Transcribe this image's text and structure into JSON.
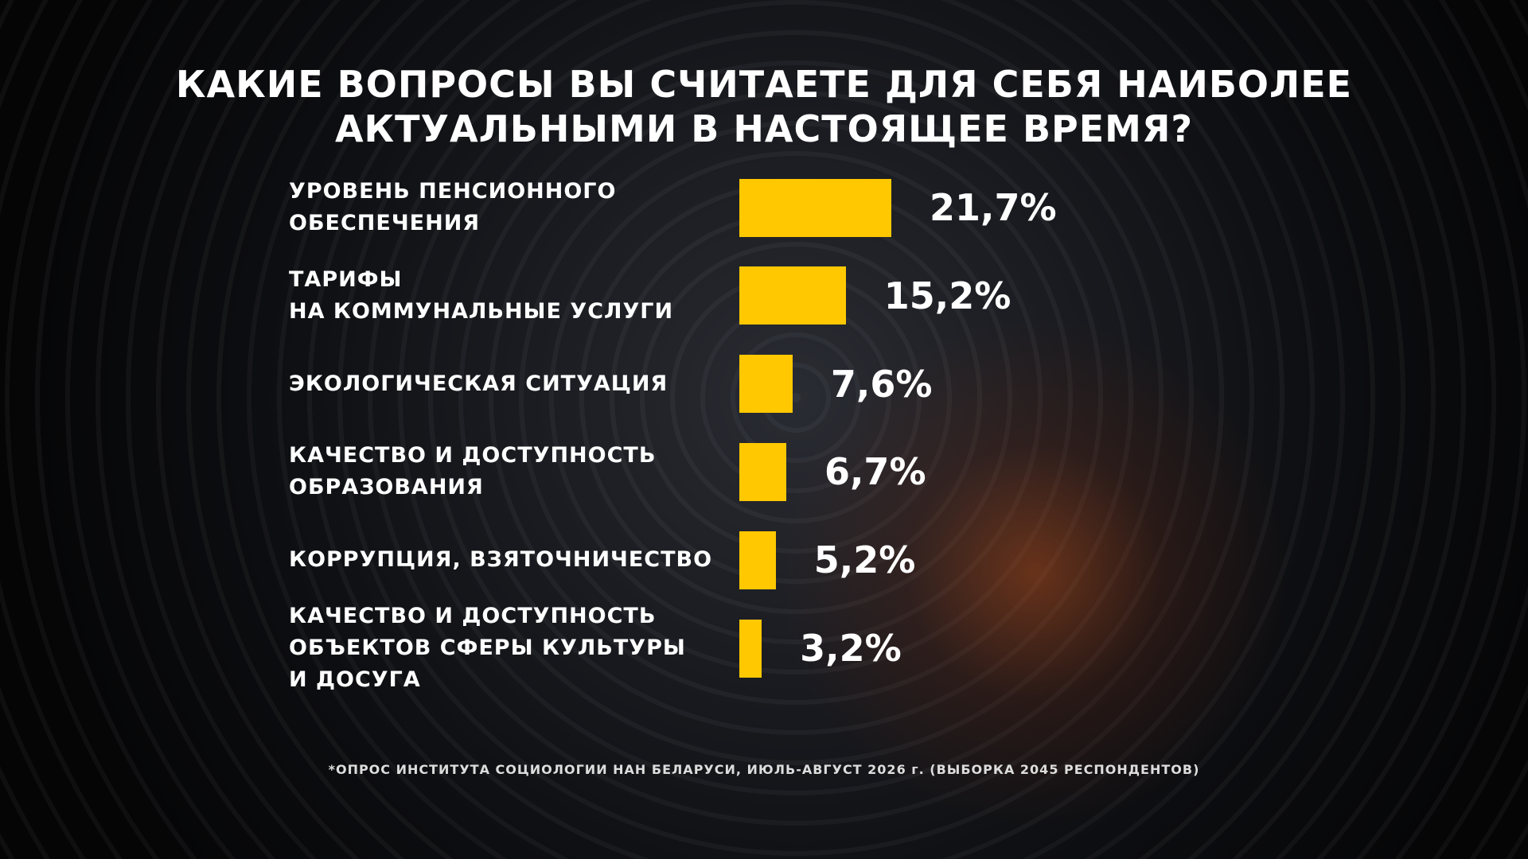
{
  "chart_data": {
    "type": "bar",
    "orientation": "horizontal",
    "title": "КАКИЕ ВОПРОСЫ ВЫ СЧИТАЕТЕ ДЛЯ СЕБЯ НАИБОЛЕЕ\nАКТУАЛЬНЫМИ В НАСТОЯЩЕЕ ВРЕМЯ?",
    "categories": [
      "УРОВЕНЬ ПЕНСИОННОГО\nОБЕСПЕЧЕНИЯ",
      "ТАРИФЫ\nНА КОММУНАЛЬНЫЕ УСЛУГИ",
      "ЭКОЛОГИЧЕСКАЯ СИТУАЦИЯ",
      "КАЧЕСТВО И ДОСТУПНОСТЬ\nОБРАЗОВАНИЯ",
      "КОРРУПЦИЯ, ВЗЯТОЧНИЧЕСТВО",
      "КАЧЕСТВО И ДОСТУПНОСТЬ\nОБЪЕКТОВ СФЕРЫ КУЛЬТУРЫ\nИ ДОСУГА"
    ],
    "values": [
      21.7,
      15.2,
      7.6,
      6.7,
      5.2,
      3.2
    ],
    "value_labels": [
      "21,7%",
      "15,2%",
      "7,6%",
      "6,7%",
      "5,2%",
      "3,2%"
    ],
    "color": "#ffc800",
    "footnote": "*ОПРОС ИНСТИТУТА СОЦИОЛОГИИ НАН БЕЛАРУСИ, ИЮЛЬ-АВГУСТ 2026 г. (ВЫБОРКА 2045 РЕСПОНДЕНТОВ)"
  }
}
